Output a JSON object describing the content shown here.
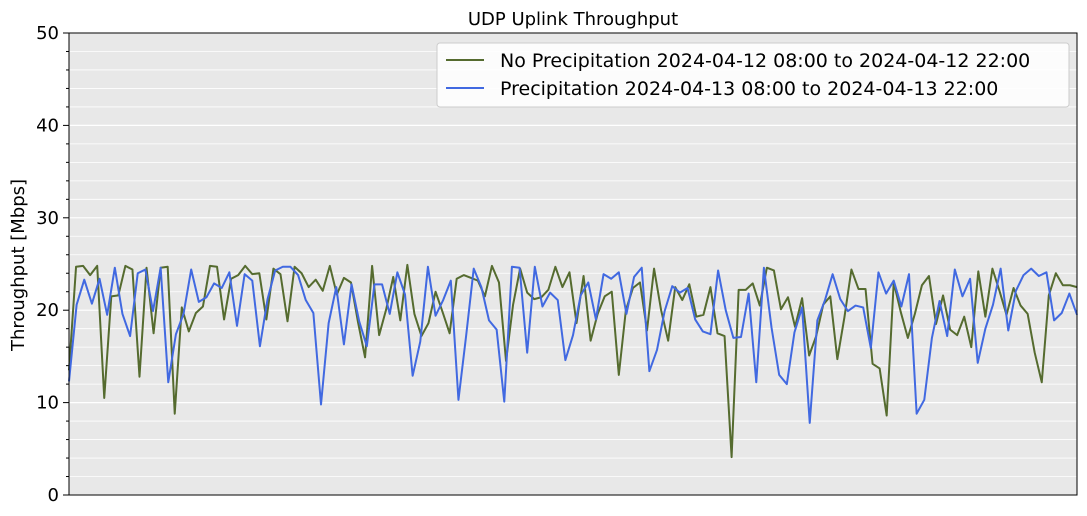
{
  "chart_data": {
    "type": "line",
    "title": "UDP Uplink Throughput",
    "xlabel": "",
    "ylabel": "Throughput [Mbps]",
    "ylim": [
      0,
      50
    ],
    "yticks": [
      0,
      10,
      20,
      30,
      40,
      50
    ],
    "grid": true,
    "legend_position": "top-right",
    "background_color": "#e8e8e8",
    "series": [
      {
        "name": "No Precipitation 2024-04-12 08:00 to 2024-04-12 22:00",
        "color": "#556b2f",
        "values": [
          13.5,
          24.7,
          24.8,
          23.8,
          24.8,
          10.5,
          21.5,
          21.6,
          24.8,
          24.4,
          12.8,
          24.6,
          17.5,
          24.6,
          24.7,
          8.8,
          20.3,
          17.7,
          19.7,
          20.4,
          24.8,
          24.7,
          19.0,
          23.4,
          23.8,
          24.8,
          23.9,
          24.0,
          19.0,
          24.5,
          23.9,
          18.8,
          24.7,
          24.0,
          22.5,
          23.3,
          22.1,
          24.8,
          21.7,
          23.5,
          23.0,
          18.7,
          14.9,
          24.8,
          17.3,
          20.1,
          23.6,
          18.9,
          24.9,
          19.6,
          17.2,
          18.6,
          22.0,
          19.8,
          17.5,
          23.4,
          23.8,
          23.5,
          23.2,
          21.5,
          24.8,
          23.0,
          14.5,
          20.6,
          24.5,
          21.9,
          21.2,
          21.4,
          22.2,
          24.7,
          22.5,
          24.1,
          18.6,
          23.7,
          16.7,
          19.6,
          21.5,
          22.0,
          13.0,
          20.0,
          22.4,
          23.0,
          17.8,
          24.5,
          20.0,
          16.7,
          22.5,
          21.1,
          22.8,
          19.3,
          19.5,
          22.5,
          17.5,
          17.2,
          4.1,
          22.2,
          22.2,
          22.9,
          20.5,
          24.6,
          24.3,
          20.1,
          21.4,
          18.2,
          21.3,
          15.1,
          17.2,
          20.6,
          21.5,
          14.7,
          19.2,
          24.4,
          22.3,
          22.3,
          14.2,
          13.7,
          8.6,
          23.0,
          19.8,
          17.0,
          19.6,
          22.7,
          23.7,
          18.5,
          21.6,
          17.9,
          17.3,
          19.3,
          16.0,
          24.2,
          19.3,
          24.5,
          22.1,
          19.5,
          22.4,
          20.5,
          19.6,
          15.4,
          12.2,
          21.6,
          24.0,
          22.7,
          22.7,
          22.5
        ]
      },
      {
        "name": "Precipitation 2024-04-13 08:00 to 2024-04-13 22:00",
        "color": "#4169e1",
        "values": [
          12.3,
          20.6,
          23.3,
          20.7,
          23.4,
          19.5,
          24.6,
          19.6,
          17.2,
          24.0,
          24.4,
          19.9,
          24.6,
          12.2,
          17.4,
          19.6,
          24.4,
          20.9,
          21.4,
          22.9,
          22.4,
          24.1,
          18.3,
          23.9,
          23.2,
          16.1,
          21.2,
          24.3,
          24.7,
          24.7,
          23.8,
          21.1,
          19.7,
          9.8,
          18.6,
          22.5,
          16.3,
          22.8,
          18.8,
          16.1,
          22.8,
          22.8,
          19.6,
          24.1,
          21.7,
          12.9,
          16.6,
          24.7,
          19.4,
          21.1,
          23.2,
          10.3,
          17.2,
          24.5,
          22.5,
          18.9,
          17.9,
          10.1,
          24.7,
          24.6,
          15.4,
          24.7,
          20.4,
          21.9,
          21.1,
          14.6,
          17.3,
          21.6,
          23.0,
          19.0,
          23.9,
          23.4,
          24.1,
          19.6,
          23.6,
          24.6,
          13.4,
          15.7,
          19.9,
          22.6,
          21.9,
          22.4,
          19.0,
          17.7,
          17.4,
          24.3,
          20.0,
          17.0,
          17.1,
          21.8,
          12.2,
          24.6,
          18.1,
          13.0,
          12.0,
          17.6,
          20.3,
          7.8,
          18.9,
          21.1,
          23.9,
          21.2,
          19.9,
          20.5,
          20.3,
          15.9,
          24.1,
          21.8,
          23.2,
          20.4,
          23.9,
          8.8,
          10.3,
          17.0,
          21.0,
          17.2,
          24.4,
          21.5,
          23.4,
          14.3,
          18.0,
          20.6,
          24.5,
          17.8,
          22.1,
          23.8,
          24.5,
          23.7,
          24.1,
          18.9,
          19.7,
          21.8,
          19.5
        ]
      }
    ]
  }
}
